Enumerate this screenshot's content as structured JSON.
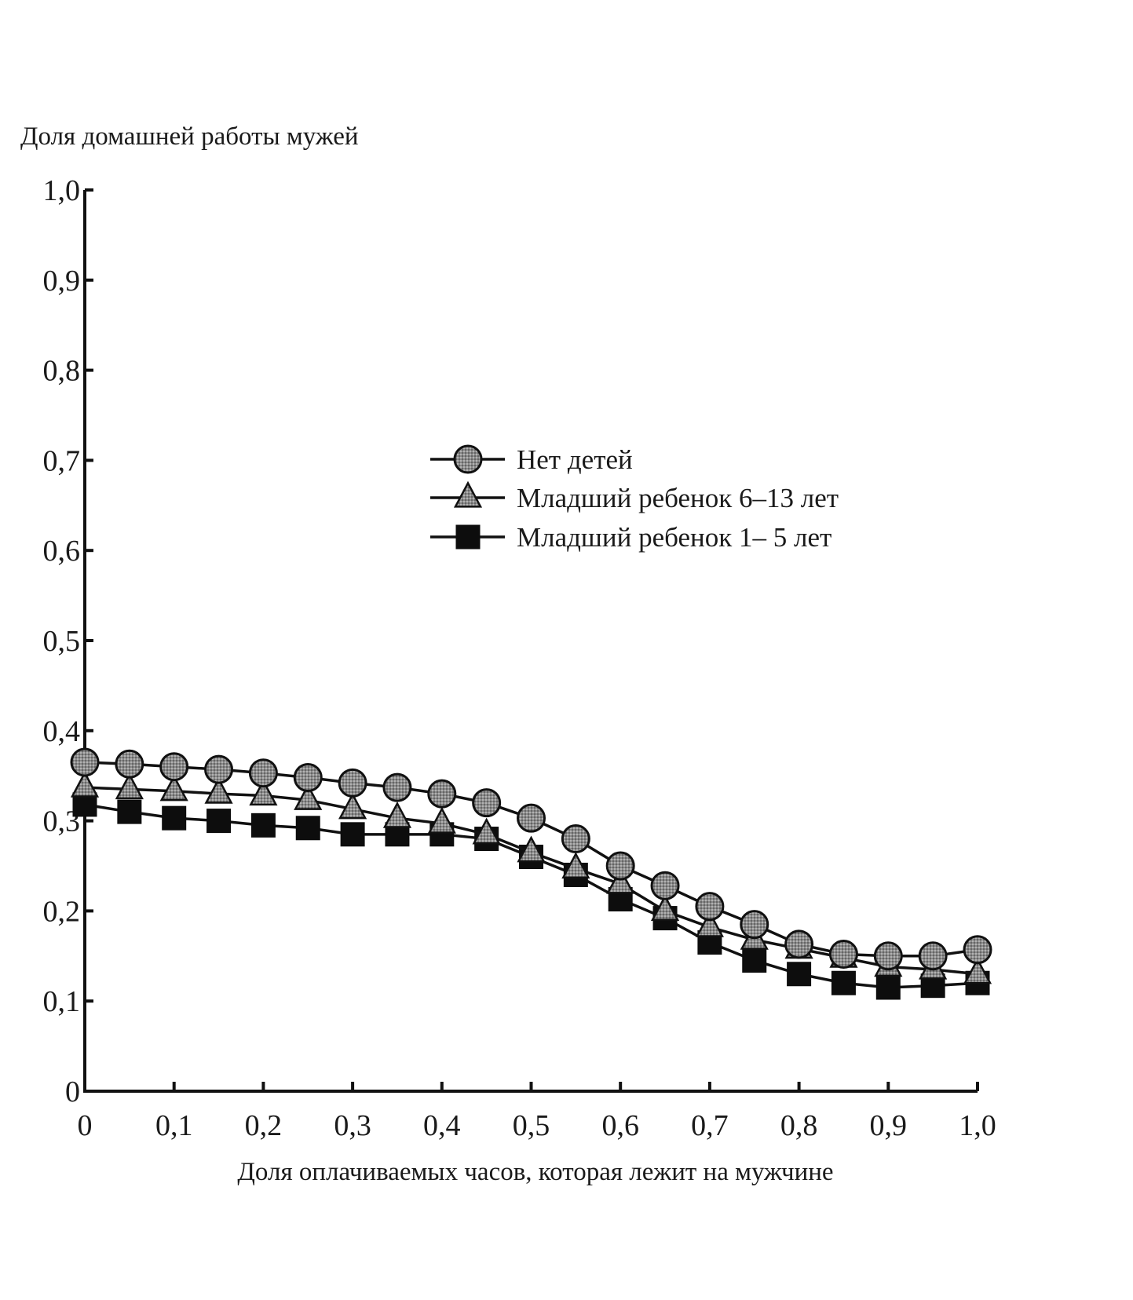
{
  "chart_data": {
    "type": "line",
    "title": "",
    "ylabel": "Доля домашней работы мужей",
    "xlabel": "Доля оплачиваемых часов, которая лежит на мужчине",
    "xlim": [
      0,
      1.0
    ],
    "ylim": [
      0,
      1.0
    ],
    "x_ticks": [
      "0",
      "0,1",
      "0,2",
      "0,3",
      "0,4",
      "0,5",
      "0,6",
      "0,7",
      "0,8",
      "0,9",
      "1,0"
    ],
    "y_ticks": [
      "0",
      "0,1",
      "0,2",
      "0,3",
      "0,4",
      "0,5",
      "0,6",
      "0,7",
      "0,8",
      "0,9",
      "1,0"
    ],
    "grid": false,
    "legend_position": "center-right",
    "x": [
      0,
      0.05,
      0.1,
      0.15,
      0.2,
      0.25,
      0.3,
      0.35,
      0.4,
      0.45,
      0.5,
      0.55,
      0.6,
      0.65,
      0.7,
      0.75,
      0.8,
      0.85,
      0.9,
      0.95,
      1.0
    ],
    "series": [
      {
        "name": "Нет детей",
        "marker": "circle",
        "values": [
          0.365,
          0.363,
          0.36,
          0.357,
          0.353,
          0.348,
          0.342,
          0.337,
          0.33,
          0.32,
          0.303,
          0.28,
          0.25,
          0.228,
          0.205,
          0.185,
          0.163,
          0.152,
          0.15,
          0.15,
          0.157
        ]
      },
      {
        "name": "Младший ребенок 6–13 лет",
        "marker": "triangle",
        "values": [
          0.337,
          0.335,
          0.333,
          0.33,
          0.328,
          0.323,
          0.313,
          0.303,
          0.297,
          0.285,
          0.265,
          0.247,
          0.23,
          0.2,
          0.182,
          0.168,
          0.158,
          0.148,
          0.138,
          0.135,
          0.13
        ]
      },
      {
        "name": "Младший ребенок 1– 5 лет",
        "marker": "square",
        "values": [
          0.318,
          0.31,
          0.303,
          0.3,
          0.295,
          0.292,
          0.285,
          0.285,
          0.285,
          0.28,
          0.26,
          0.24,
          0.213,
          0.192,
          0.165,
          0.145,
          0.13,
          0.12,
          0.115,
          0.117,
          0.12
        ]
      }
    ]
  }
}
